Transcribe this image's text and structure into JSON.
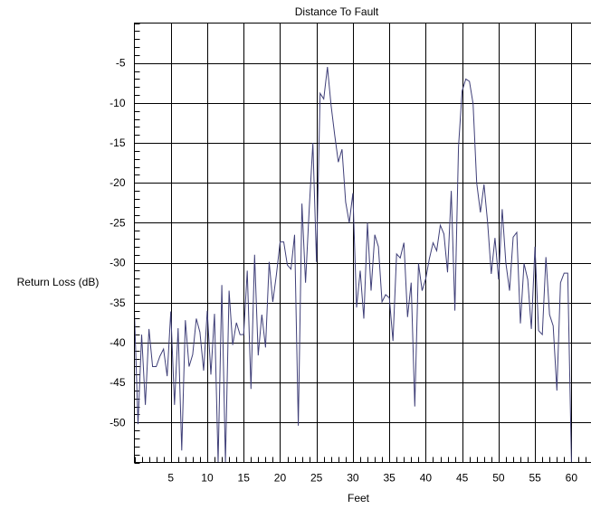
{
  "chart_data": {
    "type": "line",
    "title": "Distance To Fault",
    "xlabel": "Feet",
    "ylabel": "Return Loss (dB)",
    "xlim": [
      0,
      63
    ],
    "ylim": [
      -55,
      0
    ],
    "x_ticks": [
      5,
      10,
      15,
      20,
      25,
      30,
      35,
      40,
      45,
      50,
      55,
      60
    ],
    "y_ticks": [
      -5,
      -10,
      -15,
      -20,
      -25,
      -30,
      -35,
      -40,
      -45,
      -50
    ],
    "grid": true,
    "colors": {
      "line": "#3f3f78",
      "grid": "#000000"
    },
    "series": [
      {
        "x": [
          0,
          0.5,
          1.0,
          1.5,
          2.0,
          2.5,
          3.0,
          3.5,
          4.0,
          4.5,
          5.0,
          5.5,
          6.0,
          6.5,
          7.0,
          7.5,
          8.0,
          8.5,
          9.0,
          9.5,
          10.0,
          10.5,
          11.0,
          11.5,
          12.0,
          12.5,
          13.0,
          13.5,
          14.0,
          14.5,
          15.0,
          15.5,
          16.0,
          16.5,
          17.0,
          17.5,
          18.0,
          18.5,
          19.0,
          19.5,
          20.0,
          20.5,
          21.0,
          21.5,
          22.0,
          22.5,
          23.0,
          23.5,
          24.0,
          24.5,
          25.0,
          25.5,
          26.0,
          26.5,
          27.0,
          27.5,
          28.0,
          28.5,
          29.0,
          29.5,
          30.0,
          30.5,
          31.0,
          31.5,
          32.0,
          32.5,
          33.0,
          33.5,
          34.0,
          34.5,
          35.0,
          35.5,
          36.0,
          36.5,
          37.0,
          37.5,
          38.0,
          38.5,
          39.0,
          39.5,
          40.0,
          40.5,
          41.0,
          41.5,
          42.0,
          42.5,
          43.0,
          43.5,
          44.0,
          44.5,
          45.0,
          45.5,
          46.0,
          46.5,
          47.0,
          47.5,
          48.0,
          48.5,
          49.0,
          49.5,
          50.0,
          50.5,
          51.0,
          51.5,
          52.0,
          52.5,
          53.0,
          53.5,
          54.0,
          54.5,
          55.0,
          55.5,
          56.0,
          56.5,
          57.0,
          57.5,
          58.0,
          58.5,
          59.0,
          59.5,
          60.0
        ],
        "y": [
          -36.0,
          -50.2,
          -39.0,
          -47.8,
          -38.3,
          -43.0,
          -43.0,
          -41.7,
          -40.8,
          -44.2,
          -36.1,
          -47.8,
          -38.2,
          -53.5,
          -37.2,
          -43.0,
          -41.5,
          -37.0,
          -38.7,
          -43.5,
          -36.0,
          -44.0,
          -36.4,
          -55.0,
          -32.8,
          -55.0,
          -33.5,
          -40.3,
          -37.5,
          -39.0,
          -39.0,
          -31.0,
          -45.8,
          -29.0,
          -41.6,
          -36.5,
          -40.6,
          -29.9,
          -34.9,
          -31.5,
          -27.4,
          -27.4,
          -30.3,
          -30.8,
          -26.5,
          -50.4,
          -22.6,
          -32.5,
          -23.4,
          -15.0,
          -29.9,
          -8.8,
          -9.5,
          -5.5,
          -10.3,
          -14.0,
          -17.4,
          -15.8,
          -22.4,
          -25.0,
          -21.3,
          -35.6,
          -31.0,
          -37.0,
          -25.0,
          -33.5,
          -26.5,
          -28.0,
          -34.9,
          -34.0,
          -34.4,
          -39.8,
          -28.9,
          -29.4,
          -27.5,
          -36.8,
          -32.5,
          -48.0,
          -30.1,
          -33.5,
          -32.0,
          -29.5,
          -27.5,
          -28.5,
          -25.3,
          -26.4,
          -31.2,
          -21.0,
          -36.0,
          -15.5,
          -8.5,
          -7.0,
          -7.3,
          -10.1,
          -20.0,
          -23.7,
          -20.2,
          -25.0,
          -31.4,
          -26.9,
          -32.1,
          -23.3,
          -30.0,
          -33.5,
          -26.8,
          -26.2,
          -37.6,
          -30.1,
          -32.1,
          -38.3,
          -28.0,
          -38.5,
          -39.0,
          -29.3,
          -36.5,
          -37.9,
          -46.0,
          -32.5,
          -31.3,
          -31.3,
          -55.0
        ]
      }
    ]
  }
}
